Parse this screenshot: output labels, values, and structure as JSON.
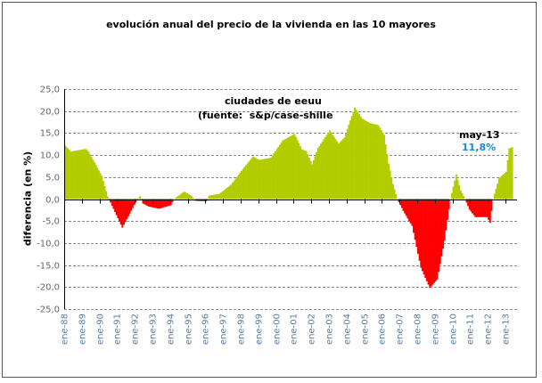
{
  "chart_data": {
    "type": "bar",
    "title": "evolución anual del precio de la vivienda en las 10 mayores",
    "annotation_lines": [
      "ciudades de eeuu",
      "(fuente:  s&p/case-shille"
    ],
    "ylabel": "diferencia (en %)",
    "xlabel": "",
    "ylim": [
      -25,
      25
    ],
    "yticks": [
      "25,0",
      "20,0",
      "15,0",
      "10,0",
      "5,0",
      "0,0",
      "-5,0",
      "-10,0",
      "-15,0",
      "-20,0",
      "-25,0"
    ],
    "xticks": [
      "ene-88",
      "ene-89",
      "ene-90",
      "ene-91",
      "ene-92",
      "ene-93",
      "ene-94",
      "ene-95",
      "ene-96",
      "ene-97",
      "ene-98",
      "ene-99",
      "ene-00",
      "ene-01",
      "ene-02",
      "ene-03",
      "ene-04",
      "ene-05",
      "ene-06",
      "ene-07",
      "ene-08",
      "ene-09",
      "ene-10",
      "ene-11",
      "ene-12",
      "ene-13"
    ],
    "grid": "horizontal dashed",
    "frequency": "monthly",
    "range": [
      "1988-01",
      "2013-05"
    ],
    "colors": {
      "positive": "#b3cc00",
      "negative": "#ff0000"
    },
    "anchor_points": [
      [
        "1988-01",
        12.2
      ],
      [
        "1988-05",
        10.8
      ],
      [
        "1989-03",
        11.4
      ],
      [
        "1989-05",
        10.8
      ],
      [
        "1990-02",
        5.3
      ],
      [
        "1990-06",
        0.6
      ],
      [
        "1991-04",
        -6.5
      ],
      [
        "1992-01",
        -0.75
      ],
      [
        "1992-04",
        0.7
      ],
      [
        "1992-06",
        -1.0
      ],
      [
        "1992-10",
        -1.7
      ],
      [
        "1993-05",
        -2.2
      ],
      [
        "1994-01",
        -1.4
      ],
      [
        "1994-03",
        0.0
      ],
      [
        "1994-10",
        1.7
      ],
      [
        "1995-03",
        0.7
      ],
      [
        "1995-06",
        -0.4
      ],
      [
        "1996-01",
        -0.5
      ],
      [
        "1996-03",
        0.8
      ],
      [
        "1996-10",
        1.2
      ],
      [
        "1997-06",
        3.3
      ],
      [
        "1998-03",
        7.3
      ],
      [
        "1998-09",
        9.7
      ],
      [
        "1999-01",
        8.9
      ],
      [
        "1999-09",
        9.4
      ],
      [
        "2000-05",
        13.3
      ],
      [
        "2001-01",
        14.8
      ],
      [
        "2001-06",
        11.3
      ],
      [
        "2001-09",
        10.9
      ],
      [
        "2002-01",
        7.9
      ],
      [
        "2002-05",
        11.6
      ],
      [
        "2003-01",
        15.6
      ],
      [
        "2003-07",
        12.6
      ],
      [
        "2003-11",
        14.0
      ],
      [
        "2004-06",
        20.8
      ],
      [
        "2004-11",
        18.3
      ],
      [
        "2005-04",
        17.3
      ],
      [
        "2005-10",
        16.8
      ],
      [
        "2006-02",
        14.6
      ],
      [
        "2006-05",
        8.1
      ],
      [
        "2006-08",
        3.4
      ],
      [
        "2006-11",
        0.0
      ],
      [
        "2007-03",
        -2.7
      ],
      [
        "2007-09",
        -6.1
      ],
      [
        "2008-03",
        -15.6
      ],
      [
        "2008-09",
        -20.2
      ],
      [
        "2009-02",
        -18.3
      ],
      [
        "2009-07",
        -9.5
      ],
      [
        "2009-11",
        0.0
      ],
      [
        "2010-03",
        5.6
      ],
      [
        "2010-06",
        2.0
      ],
      [
        "2010-09",
        0.0
      ],
      [
        "2010-12",
        -2.4
      ],
      [
        "2011-04",
        -4.1
      ],
      [
        "2011-12",
        -4.1
      ],
      [
        "2012-02",
        -5.4
      ],
      [
        "2012-04",
        0.0
      ],
      [
        "2012-08",
        4.7
      ],
      [
        "2013-01",
        6.2
      ],
      [
        "2013-03",
        11.5
      ],
      [
        "2013-05",
        11.8
      ]
    ],
    "callout": {
      "date": "may-13",
      "value": "11,8%",
      "color": "#1e88d0"
    }
  }
}
